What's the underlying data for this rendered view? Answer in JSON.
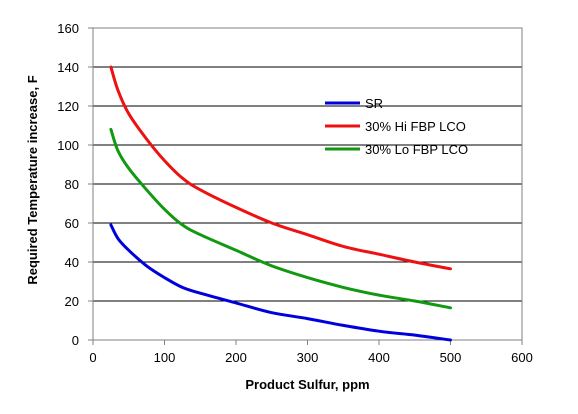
{
  "chart_data": {
    "type": "line",
    "xlabel": "Product Sulfur, ppm",
    "ylabel": "Required Temperature increase, F",
    "xlim": [
      0,
      600
    ],
    "ylim": [
      0,
      160
    ],
    "xticks": [
      0,
      100,
      200,
      300,
      400,
      500,
      600
    ],
    "yticks": [
      0,
      20,
      40,
      60,
      80,
      100,
      120,
      140,
      160
    ],
    "grid": "horizontal",
    "legend_position": "right",
    "series": [
      {
        "name": "SR",
        "color": "#0000dd",
        "x": [
          25,
          35,
          50,
          75,
          100,
          125,
          150,
          200,
          250,
          300,
          350,
          400,
          450,
          500
        ],
        "y": [
          59,
          52,
          46,
          38,
          32,
          27,
          24,
          19,
          14,
          11,
          7.5,
          4.5,
          2.5,
          0
        ]
      },
      {
        "name": "30% Hi FBP LCO",
        "color": "#ee1111",
        "x": [
          25,
          35,
          50,
          75,
          100,
          125,
          150,
          200,
          250,
          300,
          350,
          400,
          450,
          500
        ],
        "y": [
          140,
          128,
          116,
          103,
          92,
          83,
          77,
          68,
          60,
          54,
          48,
          44,
          40,
          36.5
        ]
      },
      {
        "name": "30% Lo FBP LCO",
        "color": "#119911",
        "x": [
          25,
          35,
          50,
          75,
          100,
          125,
          150,
          200,
          250,
          300,
          350,
          400,
          450,
          500
        ],
        "y": [
          108,
          97,
          88,
          77,
          67,
          59,
          54,
          46,
          38,
          32,
          27,
          23,
          20,
          16.5
        ]
      }
    ]
  }
}
